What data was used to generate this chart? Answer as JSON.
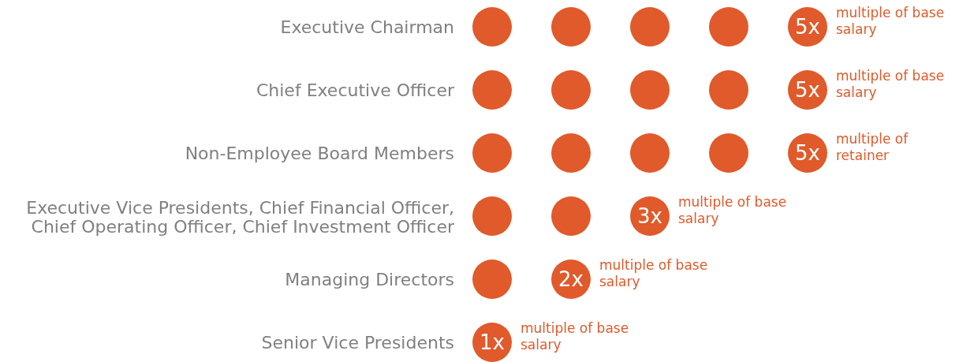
{
  "chart_data": {
    "type": "other",
    "categories": [
      "Executive Chairman",
      "Chief Executive Officer",
      "Non-Employee Board Members",
      "Executive Vice Presidents, Chief Financial Officer, Chief Operating Officer, Chief Investment Officer",
      "Managing Directors",
      "Senior Vice Presidents"
    ],
    "values": [
      5,
      5,
      5,
      3,
      2,
      1
    ],
    "value_labels": [
      "5x",
      "5x",
      "5x",
      "3x",
      "2x",
      "1x"
    ],
    "color": "#e05a2b",
    "annotations": [
      {
        "text": "multiple of base salary",
        "y": "Executive Chairman"
      },
      {
        "text": "multiple of base salary",
        "y": "Chief Executive Officer"
      },
      {
        "text": "multiple of retainer",
        "y": "Non-Employee Board Members"
      },
      {
        "text": "multiple of base salary",
        "y": "Executive Vice Presidents, Chief Financial Officer, Chief Operating Officer, Chief Investment Officer"
      },
      {
        "text": "multiple of base salary",
        "y": "Managing Directors"
      },
      {
        "text": "multiple of base salary",
        "y": "Senior Vice Presidents"
      }
    ]
  }
}
